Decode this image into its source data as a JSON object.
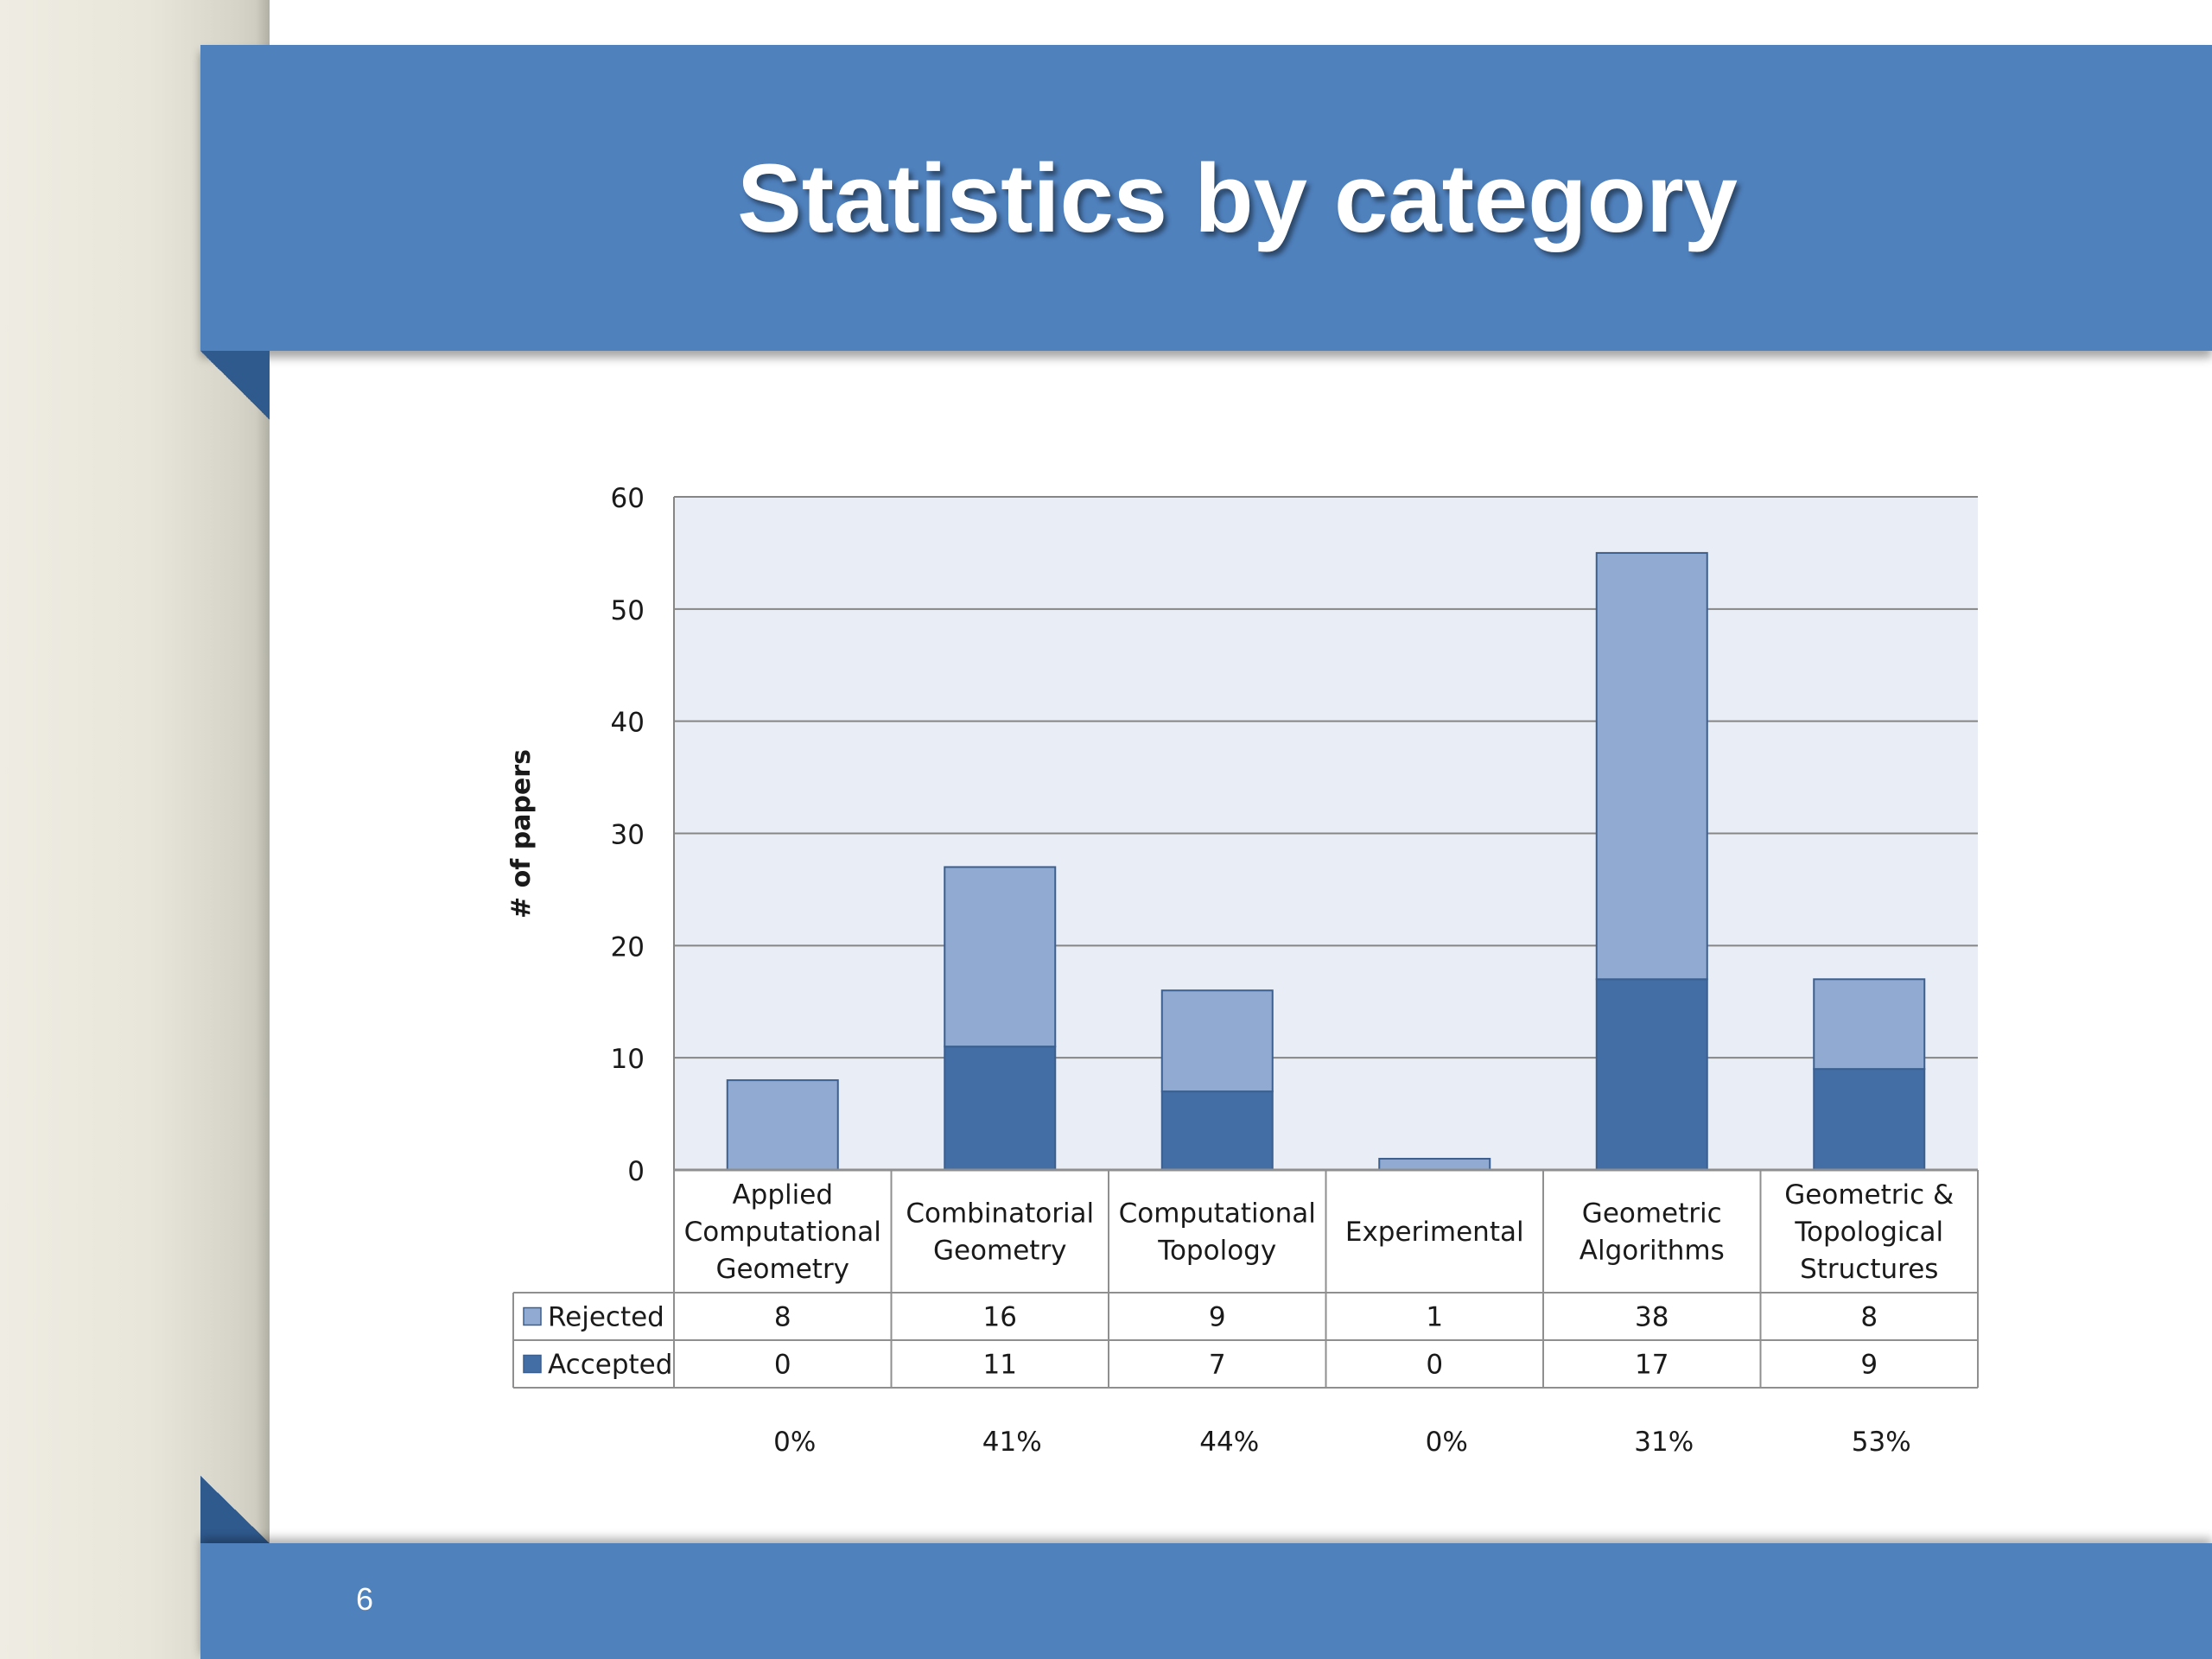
{
  "slide": {
    "title": "Statistics by category",
    "page_number": "6",
    "colors": {
      "banner": "#4f81bd",
      "plot_bg": "#e9edf5"
    }
  },
  "chart_data": {
    "type": "bar",
    "stacked": true,
    "ylabel": "# of papers",
    "ylim": [
      0,
      60
    ],
    "yticks": [
      "0",
      "10",
      "20",
      "30",
      "40",
      "50",
      "60"
    ],
    "grid": true,
    "categories": [
      [
        "Applied",
        "Computational",
        "Geometry"
      ],
      [
        "Combinatorial",
        "Geometry"
      ],
      [
        "Computational",
        "Topology"
      ],
      [
        "Experimental"
      ],
      [
        "Geometric",
        "Algorithms"
      ],
      [
        "Geometric &",
        "Topological",
        "Structures"
      ]
    ],
    "series": [
      {
        "name": "Accepted",
        "values": [
          0,
          11,
          7,
          0,
          17,
          9
        ],
        "color": "#426ea5"
      },
      {
        "name": "Rejected",
        "values": [
          8,
          16,
          9,
          1,
          38,
          8
        ],
        "color": "#91aad1"
      }
    ],
    "data_table": true,
    "table_rows": [
      {
        "name": "Rejected",
        "values": [
          "8",
          "16",
          "9",
          "1",
          "38",
          "8"
        ]
      },
      {
        "name": "Accepted",
        "values": [
          "0",
          "11",
          "7",
          "0",
          "17",
          "9"
        ]
      }
    ],
    "acceptance_rates": [
      "0%",
      "41%",
      "44%",
      "0%",
      "31%",
      "53%"
    ]
  }
}
